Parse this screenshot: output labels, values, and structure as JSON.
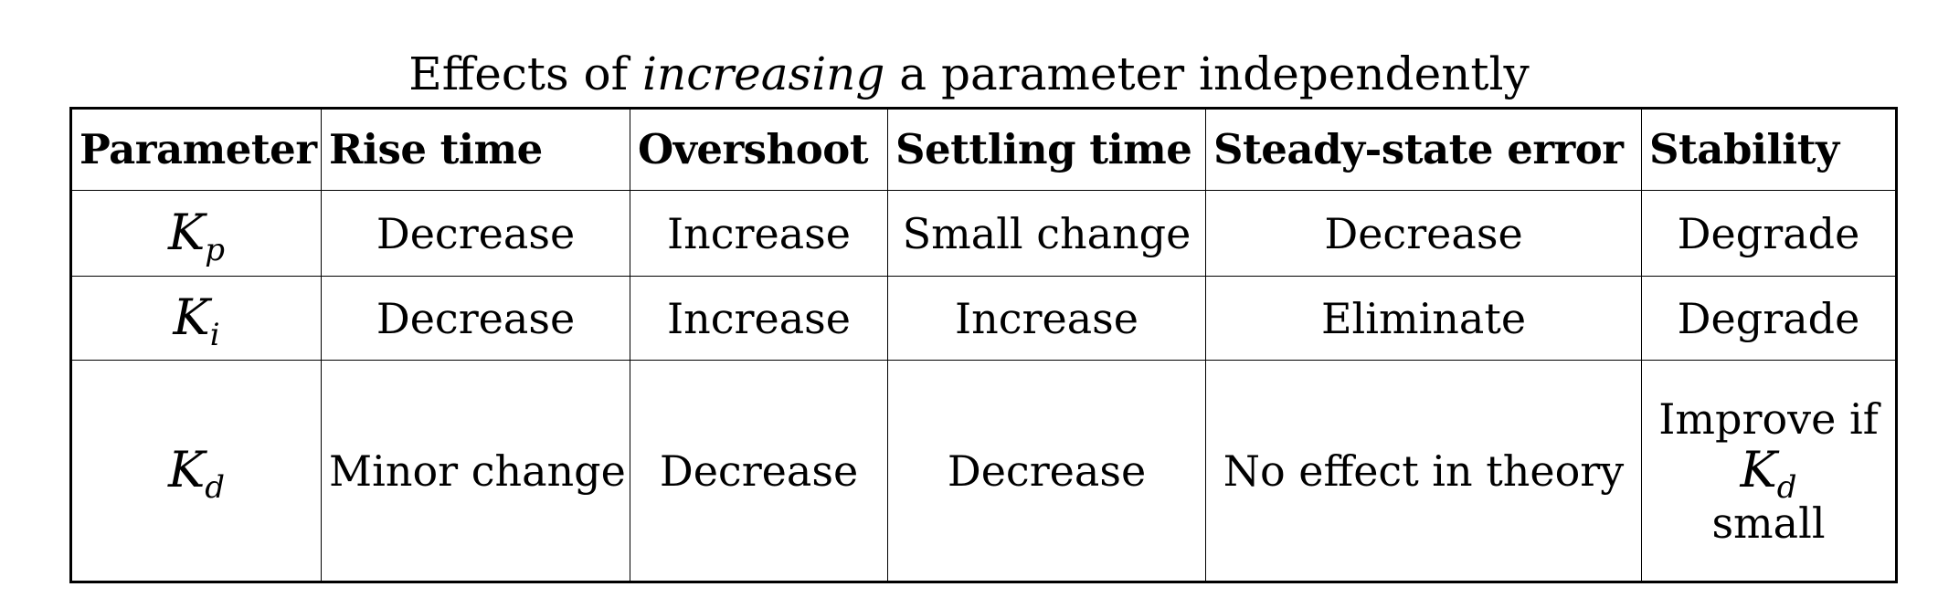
{
  "caption": {
    "prefix": "Effects of ",
    "emphasis": "increasing",
    "suffix": " a parameter independently"
  },
  "table": {
    "headers": [
      "Parameter",
      "Rise time",
      "Overshoot",
      "Settling time",
      "Steady-state error",
      "Stability"
    ],
    "rows": [
      {
        "symbol_base": "K",
        "symbol_sub": "p",
        "cells": [
          "Decrease",
          "Increase",
          "Small change",
          "Decrease",
          "Degrade"
        ]
      },
      {
        "symbol_base": "K",
        "symbol_sub": "i",
        "cells": [
          "Decrease",
          "Increase",
          "Increase",
          "Eliminate",
          "Degrade"
        ]
      },
      {
        "symbol_base": "K",
        "symbol_sub": "d",
        "cells": [
          "Minor change",
          "Decrease",
          "Decrease",
          "No effect in theory"
        ],
        "stability": {
          "line1": "Improve if",
          "symbol_base": "K",
          "symbol_sub": "d",
          "line3": "small"
        }
      }
    ]
  }
}
